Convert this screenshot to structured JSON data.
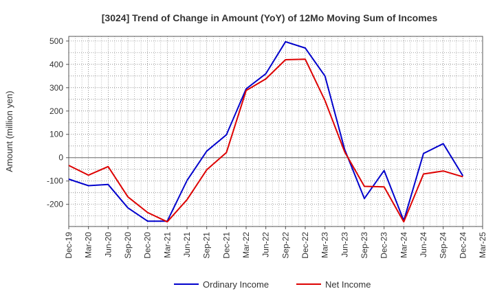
{
  "chart_data": {
    "type": "line",
    "title": "[3024]  Trend of Change in Amount (YoY) of 12Mo Moving Sum of Incomes",
    "xlabel": "",
    "ylabel": "Amount (million yen)",
    "ylim": [
      -295,
      520
    ],
    "yticks": [
      500,
      400,
      300,
      200,
      100,
      0,
      -100,
      -200
    ],
    "categories": [
      "Dec-19",
      "Mar-20",
      "Jun-20",
      "Sep-20",
      "Dec-20",
      "Mar-21",
      "Jun-21",
      "Sep-21",
      "Dec-21",
      "Mar-22",
      "Jun-22",
      "Sep-22",
      "Dec-22",
      "Mar-23",
      "Jun-23",
      "Sep-23",
      "Dec-23",
      "Mar-24",
      "Jun-24",
      "Sep-24",
      "Dec-24",
      "Mar-25"
    ],
    "series": [
      {
        "name": "Ordinary Income",
        "color": "#0000cc",
        "values": [
          -92,
          -120,
          -115,
          -215,
          -272,
          -272,
          -98,
          28,
          98,
          295,
          360,
          497,
          470,
          350,
          35,
          -175,
          -55,
          -270,
          18,
          60,
          -78,
          null
        ]
      },
      {
        "name": "Net Income",
        "color": "#dd0000",
        "values": [
          -33,
          -75,
          -38,
          -168,
          -235,
          -275,
          -180,
          -52,
          22,
          288,
          338,
          420,
          422,
          245,
          25,
          -123,
          -125,
          -275,
          -70,
          -57,
          -82,
          null
        ]
      }
    ],
    "legend_position": "bottom-center",
    "grid": true
  }
}
